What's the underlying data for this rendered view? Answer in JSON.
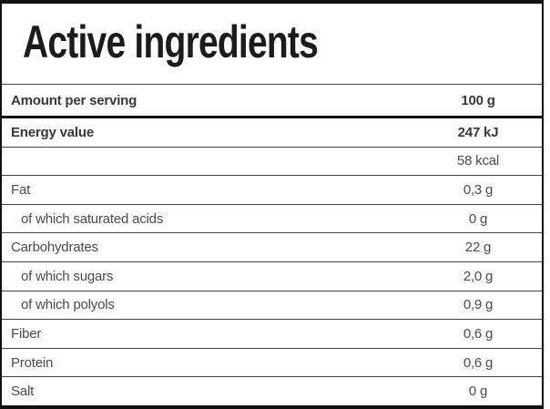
{
  "title": "Active ingredients",
  "table": {
    "header": {
      "label": "Amount per serving",
      "value": "100 g"
    },
    "rows": [
      {
        "label": "Energy value",
        "value": "247 kJ",
        "bold": true,
        "indent": false
      },
      {
        "label": "",
        "value": "58 kcal",
        "bold": false,
        "indent": false
      },
      {
        "label": "Fat",
        "value": "0,3 g",
        "bold": false,
        "indent": false
      },
      {
        "label": "of which saturated acids",
        "value": "0 g",
        "bold": false,
        "indent": true
      },
      {
        "label": "Carbohydrates",
        "value": "22 g",
        "bold": false,
        "indent": false
      },
      {
        "label": "of which sugars",
        "value": "2,0 g",
        "bold": false,
        "indent": true
      },
      {
        "label": "of which polyols",
        "value": "0,9 g",
        "bold": false,
        "indent": true
      },
      {
        "label": "Fiber",
        "value": "0,6 g",
        "bold": false,
        "indent": false
      },
      {
        "label": "Protein",
        "value": "0,6 g",
        "bold": false,
        "indent": false
      },
      {
        "label": "Salt",
        "value": "0 g",
        "bold": false,
        "indent": false
      }
    ]
  },
  "colors": {
    "background": "#ffffff",
    "border_strong": "#111111",
    "divider": "#454545",
    "title_text": "#1b1b1a",
    "bold_text": "#383837",
    "regular_text": "#4b4b4a"
  }
}
